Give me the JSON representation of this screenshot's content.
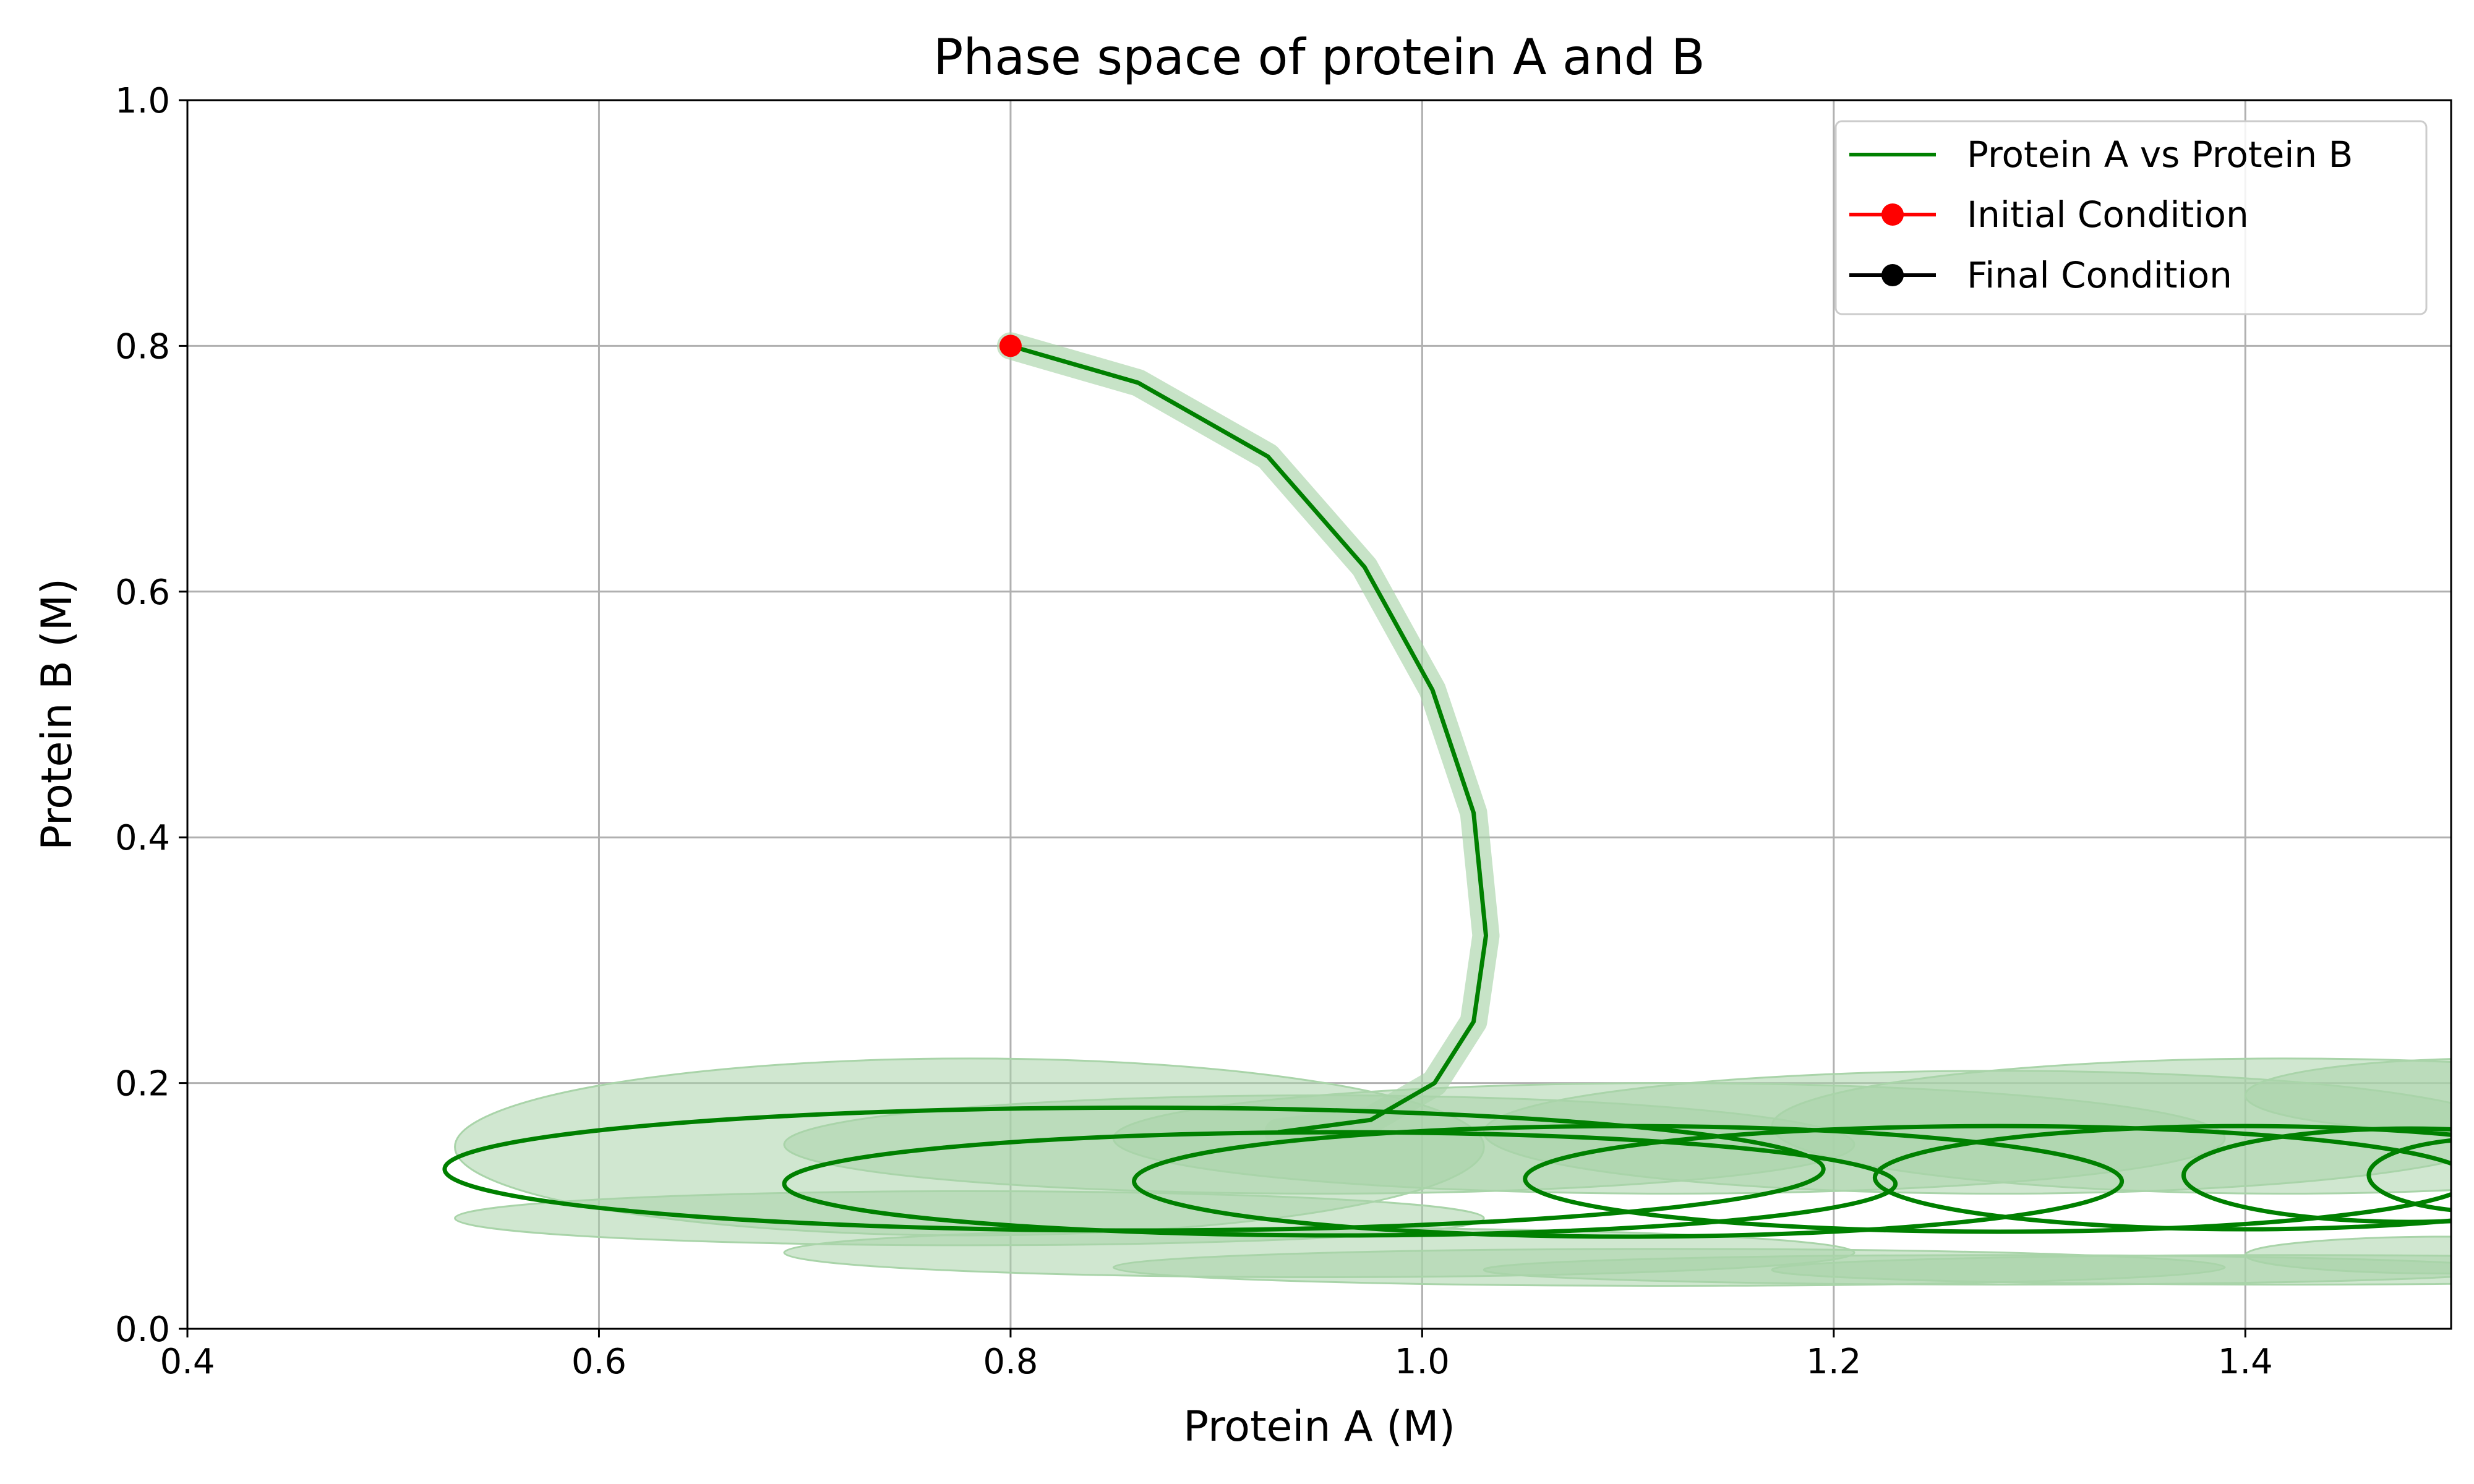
{
  "chart_data": {
    "type": "line",
    "title": "Phase space of protein A and B",
    "xlabel": "Protein A (M)",
    "ylabel": "Protein B (M)",
    "xlim": [
      0.4,
      1.5
    ],
    "ylim": [
      0.0,
      1.0
    ],
    "xticks": [
      "0.4",
      "0.6",
      "0.8",
      "1.0",
      "1.2",
      "1.4"
    ],
    "yticks": [
      "0.0",
      "0.2",
      "0.4",
      "0.6",
      "0.8",
      "1.0"
    ],
    "grid": true,
    "legend_position": "top-right",
    "colors": {
      "trajectory": "#008000",
      "band": "#a9d4a9",
      "initial": "#ff0000",
      "final": "#000000",
      "grid": "#b0b0b0"
    },
    "series": [
      {
        "name": "Protein A vs Protein B",
        "color": "#008000",
        "x": [
          0.8,
          0.862,
          0.925,
          0.972,
          1.005,
          1.025,
          1.031,
          1.025,
          1.006,
          0.975,
          0.93,
          0.88,
          0.82,
          0.76,
          0.7,
          0.64,
          0.58,
          0.535,
          0.54,
          0.62,
          0.72,
          0.83,
          0.94,
          1.05,
          1.13,
          1.15,
          1.1,
          1.0,
          0.88,
          0.76,
          0.69,
          0.71,
          0.82,
          0.96,
          1.1,
          1.21,
          1.23,
          1.16,
          1.04,
          0.92,
          0.86,
          0.9,
          1.04,
          1.2,
          1.35,
          1.46,
          1.5,
          1.44,
          1.3,
          1.15,
          1.04,
          1.08,
          1.25,
          1.42,
          1.5,
          1.43,
          1.28,
          1.18,
          1.22,
          1.38,
          1.5,
          1.45,
          1.35,
          1.3,
          1.4,
          1.5,
          1.47,
          1.4,
          1.42,
          1.49,
          1.5
        ],
        "y": [
          0.8,
          0.77,
          0.71,
          0.62,
          0.52,
          0.42,
          0.32,
          0.25,
          0.2,
          0.17,
          0.16,
          0.158,
          0.155,
          0.15,
          0.14,
          0.128,
          0.118,
          0.12,
          0.102,
          0.086,
          0.09,
          0.102,
          0.115,
          0.128,
          0.14,
          0.155,
          0.17,
          0.18,
          0.178,
          0.165,
          0.108,
          0.09,
          0.078,
          0.077,
          0.085,
          0.105,
          0.13,
          0.15,
          0.16,
          0.158,
          0.11,
          0.092,
          0.08,
          0.077,
          0.08,
          0.09,
          0.105,
          0.15,
          0.165,
          0.165,
          0.105,
          0.09,
          0.082,
          0.085,
          0.095,
          0.155,
          0.165,
          0.112,
          0.09,
          0.088,
          0.1,
          0.155,
          0.16,
          0.115,
          0.095,
          0.1,
          0.15,
          0.14,
          0.115,
          0.105,
          0.11
        ]
      }
    ],
    "markers": [
      {
        "name": "Initial Condition",
        "color": "#ff0000",
        "x": 0.8,
        "y": 0.8
      },
      {
        "name": "Final Condition",
        "color": "#000000"
      }
    ],
    "uncertainty_band": {
      "color": "#a9d4a9",
      "ellipses": [
        {
          "cx": 0.78,
          "cy": 0.148,
          "rx": 0.25,
          "ry": 0.072
        },
        {
          "cx": 0.78,
          "cy": 0.09,
          "rx": 0.25,
          "ry": 0.022
        },
        {
          "cx": 0.95,
          "cy": 0.15,
          "rx": 0.26,
          "ry": 0.04
        },
        {
          "cx": 0.95,
          "cy": 0.062,
          "rx": 0.26,
          "ry": 0.02
        },
        {
          "cx": 1.12,
          "cy": 0.155,
          "rx": 0.27,
          "ry": 0.045
        },
        {
          "cx": 1.12,
          "cy": 0.05,
          "rx": 0.27,
          "ry": 0.015
        },
        {
          "cx": 1.28,
          "cy": 0.16,
          "rx": 0.25,
          "ry": 0.05
        },
        {
          "cx": 1.28,
          "cy": 0.048,
          "rx": 0.25,
          "ry": 0.012
        },
        {
          "cx": 1.42,
          "cy": 0.165,
          "rx": 0.25,
          "ry": 0.055
        },
        {
          "cx": 1.42,
          "cy": 0.048,
          "rx": 0.25,
          "ry": 0.012
        },
        {
          "cx": 1.52,
          "cy": 0.19,
          "rx": 0.12,
          "ry": 0.03
        },
        {
          "cx": 1.5,
          "cy": 0.06,
          "rx": 0.1,
          "ry": 0.015
        }
      ],
      "spine": {
        "x": [
          0.8,
          0.862,
          0.925,
          0.972,
          1.005,
          1.025,
          1.031,
          1.025,
          1.006,
          0.975,
          0.93
        ],
        "y": [
          0.8,
          0.77,
          0.71,
          0.62,
          0.52,
          0.42,
          0.32,
          0.25,
          0.2,
          0.17,
          0.16
        ]
      }
    },
    "trajectory_ellipses": [
      {
        "cx": 0.86,
        "cy": 0.13,
        "rx": 0.335,
        "ry": 0.05
      },
      {
        "cx": 0.96,
        "cy": 0.118,
        "rx": 0.27,
        "ry": 0.042
      },
      {
        "cx": 1.1,
        "cy": 0.12,
        "rx": 0.24,
        "ry": 0.045
      },
      {
        "cx": 1.28,
        "cy": 0.122,
        "rx": 0.23,
        "ry": 0.043
      },
      {
        "cx": 1.4,
        "cy": 0.123,
        "rx": 0.18,
        "ry": 0.042
      },
      {
        "cx": 1.48,
        "cy": 0.125,
        "rx": 0.11,
        "ry": 0.038
      },
      {
        "cx": 1.52,
        "cy": 0.125,
        "rx": 0.06,
        "ry": 0.03
      }
    ]
  }
}
